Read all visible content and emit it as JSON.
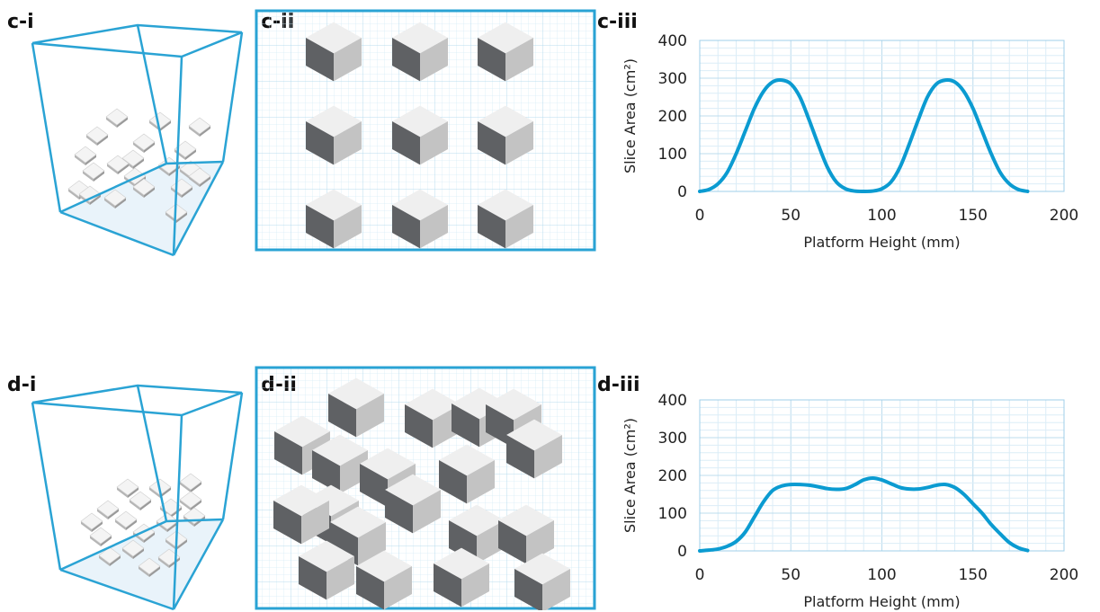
{
  "labels": {
    "c_i": "c-i",
    "c_ii": "c-ii",
    "c_iii": "c-iii",
    "d_i": "d-i",
    "d_ii": "d-ii",
    "d_iii": "d-iii"
  },
  "colors": {
    "frame": "#2aa3d4",
    "curve": "#0b9bd1",
    "grid": "#d7ecf7",
    "cube_top": "#efefef",
    "cube_left": "#5f6164",
    "cube_right": "#c3c3c3",
    "floor": "#e9f3fa"
  },
  "chart_data": [
    {
      "type": "line",
      "title": "",
      "xlabel": "Platform Height (mm)",
      "ylabel": "Slice Area (cm²)",
      "xlim": [
        0,
        200
      ],
      "ylim": [
        0,
        400
      ],
      "xticks": [
        "0",
        "50",
        "100",
        "150",
        "200"
      ],
      "yticks": [
        "0",
        "100",
        "200",
        "300",
        "400"
      ],
      "grid": true,
      "series": [
        {
          "x": [
            0,
            5,
            10,
            15,
            20,
            25,
            30,
            35,
            40,
            45,
            50,
            55,
            60,
            65,
            70,
            75,
            80,
            85,
            90,
            95,
            100,
            105,
            110,
            115,
            120,
            125,
            130,
            135,
            140,
            145,
            150,
            155,
            160,
            165,
            170,
            175,
            180
          ],
          "y": [
            0,
            5,
            20,
            50,
            100,
            160,
            220,
            265,
            290,
            295,
            285,
            250,
            190,
            125,
            65,
            25,
            7,
            1,
            0,
            1,
            7,
            25,
            65,
            125,
            190,
            250,
            285,
            295,
            290,
            265,
            220,
            160,
            100,
            50,
            20,
            5,
            0
          ]
        }
      ]
    },
    {
      "type": "line",
      "title": "",
      "xlabel": "Platform Height (mm)",
      "ylabel": "Slice Area (cm²)",
      "xlim": [
        0,
        200
      ],
      "ylim": [
        0,
        400
      ],
      "xticks": [
        "0",
        "50",
        "100",
        "150",
        "200"
      ],
      "yticks": [
        "0",
        "100",
        "200",
        "300",
        "400"
      ],
      "grid": true,
      "series": [
        {
          "x": [
            0,
            5,
            10,
            15,
            20,
            25,
            30,
            35,
            40,
            45,
            50,
            55,
            60,
            65,
            70,
            75,
            80,
            85,
            90,
            95,
            100,
            105,
            110,
            115,
            120,
            125,
            130,
            135,
            140,
            145,
            150,
            155,
            160,
            165,
            170,
            175,
            180
          ],
          "y": [
            0,
            2,
            5,
            12,
            25,
            50,
            90,
            130,
            160,
            172,
            176,
            176,
            174,
            170,
            165,
            163,
            165,
            175,
            188,
            193,
            188,
            178,
            168,
            164,
            164,
            168,
            174,
            176,
            168,
            150,
            125,
            100,
            70,
            45,
            22,
            8,
            1
          ]
        }
      ]
    }
  ]
}
